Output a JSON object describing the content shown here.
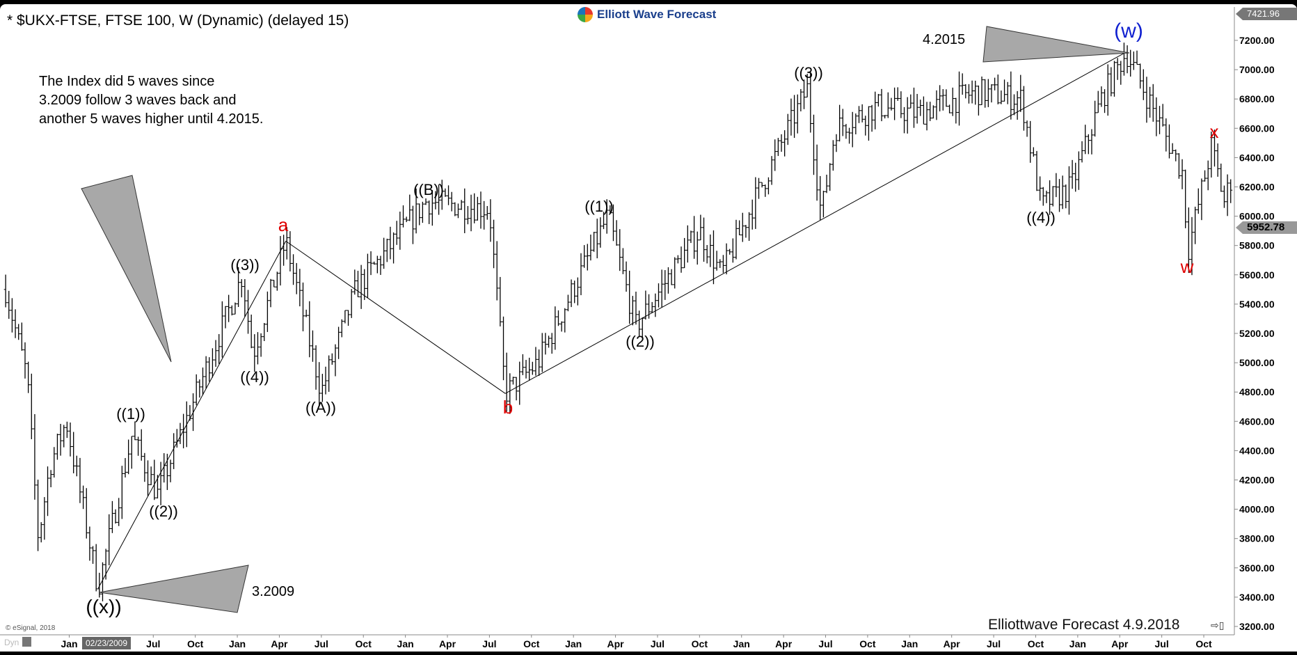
{
  "header": {
    "title": "* $UKX-FTSE, FTSE 100, W (Dynamic) (delayed 15)",
    "logo_text": "Elliott Wave Forecast"
  },
  "note": [
    "The Index did 5 waves since",
    "3.2009 follow 3 waves back and",
    "another 5 waves higher until 4.2015."
  ],
  "watermark": "Elliottwave Forecast 4.9.2018",
  "copyright": "© eSignal, 2018",
  "footer": {
    "dyn_label": "Dyn",
    "date_tag": "02/23/2009",
    "scroll_end_icon": "scroll-to-end-icon"
  },
  "price_tags": {
    "high": "7421.96",
    "last": "5952.78"
  },
  "colors": {
    "bars": "#000000",
    "wave_red": "#e00000",
    "wave_blue": "#1020d0",
    "triangle": "#a8a8a8"
  },
  "chart_data": {
    "type": "ohlc-bar",
    "interval": "weekly",
    "ylim": [
      3200,
      7421.96
    ],
    "y_ticks": [
      3200,
      3400,
      3600,
      3800,
      4000,
      4200,
      4400,
      4600,
      4800,
      5000,
      5200,
      5400,
      5600,
      5800,
      6000,
      6200,
      6400,
      6600,
      6800,
      7000,
      7200
    ],
    "y_tick_labels": [
      "3200.00",
      "3400.00",
      "3600.00",
      "3800.00",
      "4000.00",
      "4200.00",
      "4400.00",
      "4600.00",
      "4800.00",
      "5000.00",
      "5200.00",
      "5400.00",
      "5600.00",
      "5800.00",
      "6000.00",
      "6200.00",
      "6400.00",
      "6600.00",
      "6800.00",
      "7000.00",
      "7200.00"
    ],
    "x_ticks": [
      [
        "2009-01",
        "Jan"
      ],
      [
        "2009-07",
        "Jul"
      ],
      [
        "2009-10",
        "Oct"
      ],
      [
        "2010-01",
        "Jan"
      ],
      [
        "2010-04",
        "Apr"
      ],
      [
        "2010-07",
        "Jul"
      ],
      [
        "2010-10",
        "Oct"
      ],
      [
        "2011-01",
        "Jan"
      ],
      [
        "2011-04",
        "Apr"
      ],
      [
        "2011-07",
        "Jul"
      ],
      [
        "2011-10",
        "Oct"
      ],
      [
        "2012-01",
        "Jan"
      ],
      [
        "2012-04",
        "Apr"
      ],
      [
        "2012-07",
        "Jul"
      ],
      [
        "2012-10",
        "Oct"
      ],
      [
        "2013-01",
        "Jan"
      ],
      [
        "2013-04",
        "Apr"
      ],
      [
        "2013-07",
        "Jul"
      ],
      [
        "2013-10",
        "Oct"
      ],
      [
        "2014-01",
        "Jan"
      ],
      [
        "2014-04",
        "Apr"
      ],
      [
        "2014-07",
        "Jul"
      ],
      [
        "2014-10",
        "Oct"
      ],
      [
        "2015-01",
        "Jan"
      ],
      [
        "2015-04",
        "Apr"
      ],
      [
        "2015-07",
        "Jul"
      ],
      [
        "2015-10",
        "Oct"
      ]
    ],
    "pivots": [
      [
        "2008-08-15",
        5500
      ],
      [
        "2008-10-01",
        4900
      ],
      [
        "2008-10-25",
        3800
      ],
      [
        "2008-11-20",
        4300
      ],
      [
        "2008-12-25",
        4600
      ],
      [
        "2009-02-01",
        4000
      ],
      [
        "2009-03-03",
        3460
      ],
      [
        "2009-05-15",
        4500
      ],
      [
        "2009-07-10",
        4100
      ],
      [
        "2010-01-12",
        5600
      ],
      [
        "2010-02-04",
        5050
      ],
      [
        "2010-04-15",
        5830
      ],
      [
        "2010-07-01",
        4800
      ],
      [
        "2010-09-15",
        5500
      ],
      [
        "2011-02-15",
        6100
      ],
      [
        "2011-07-01",
        6050
      ],
      [
        "2011-08-05",
        4790
      ],
      [
        "2011-10-15",
        5000
      ],
      [
        "2012-03-15",
        6000
      ],
      [
        "2012-05-15",
        5250
      ],
      [
        "2012-10-01",
        5900
      ],
      [
        "2012-11-18",
        5600
      ],
      [
        "2013-01-28",
        6100
      ],
      [
        "2013-05-22",
        6870
      ],
      [
        "2013-06-22",
        6000
      ],
      [
        "2013-07-22",
        6600
      ],
      [
        "2013-10-22",
        6750
      ],
      [
        "2014-01-18",
        6700
      ],
      [
        "2014-05-25",
        6850
      ],
      [
        "2014-09-01",
        6800
      ],
      [
        "2014-10-13",
        6070
      ],
      [
        "2014-12-18",
        6200
      ],
      [
        "2015-02-22",
        6800
      ],
      [
        "2015-04-15",
        7120
      ],
      [
        "2015-05-18",
        6900
      ],
      [
        "2015-08-15",
        6300
      ],
      [
        "2015-08-28",
        5770
      ],
      [
        "2015-10-18",
        6480
      ],
      [
        "2015-11-15",
        6100
      ],
      [
        "2015-12-04",
        6300
      ]
    ],
    "wave_labels": [
      {
        "text": "((x))",
        "color": "black"
      },
      {
        "text": "((1))",
        "color": "black"
      },
      {
        "text": "((2))",
        "color": "black"
      },
      {
        "text": "((3))",
        "color": "black"
      },
      {
        "text": "((4))",
        "color": "black"
      },
      {
        "text": "a",
        "color": "red"
      },
      {
        "text": "((A))",
        "color": "black"
      },
      {
        "text": "((B))",
        "color": "black"
      },
      {
        "text": "b",
        "color": "red"
      },
      {
        "text": "((1))",
        "color": "black"
      },
      {
        "text": "((2))",
        "color": "black"
      },
      {
        "text": "((3))",
        "color": "black"
      },
      {
        "text": "((4))",
        "color": "black"
      },
      {
        "text": "(w)",
        "color": "blue"
      },
      {
        "text": "w",
        "color": "red"
      },
      {
        "text": "x",
        "color": "red"
      }
    ],
    "annotations": {
      "start": "3.2009",
      "end": "4.2015"
    },
    "trendlines": [
      [
        [
          "2009-03-03",
          3460
        ],
        [
          "2010-04-15",
          5830
        ]
      ],
      [
        [
          "2010-04-15",
          5830
        ],
        [
          "2011-08-05",
          4790
        ]
      ],
      [
        [
          "2011-08-05",
          4790
        ],
        [
          "2015-04-15",
          7120
        ]
      ]
    ]
  }
}
